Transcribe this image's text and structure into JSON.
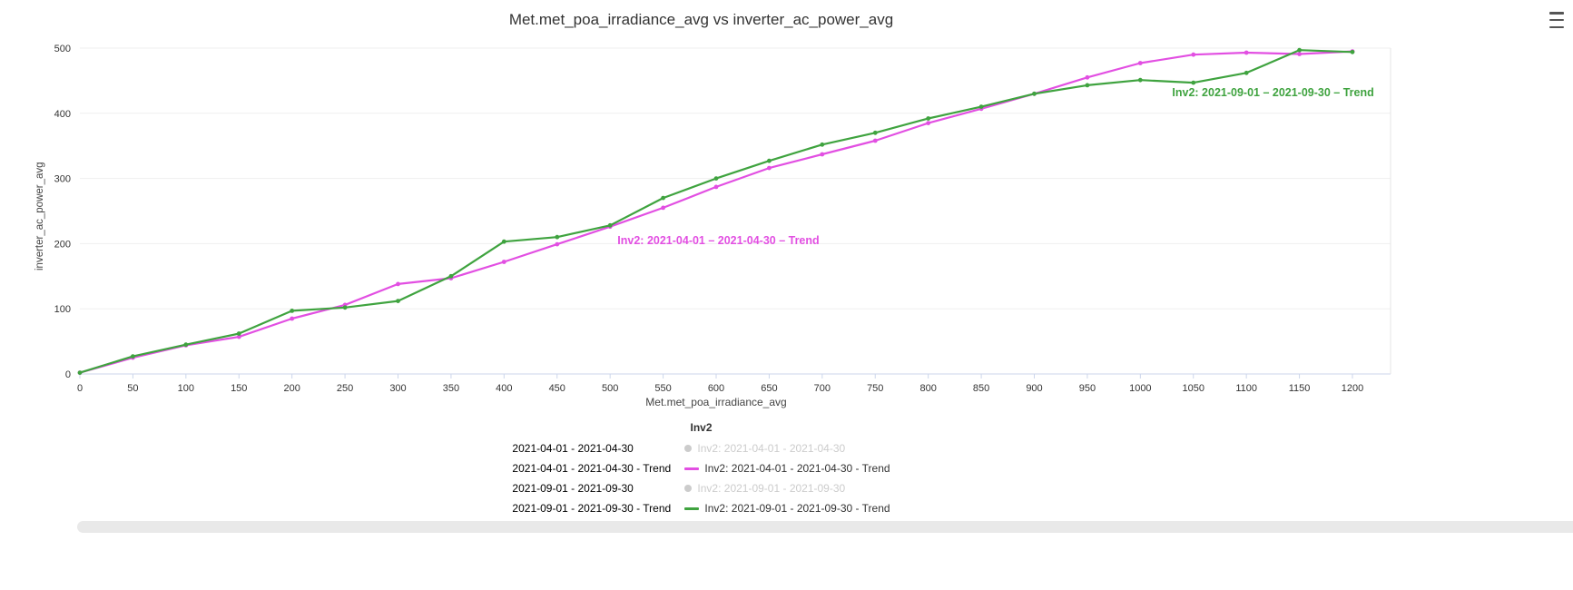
{
  "chart": {
    "title": "Met.met_poa_irradiance_avg vs inverter_ac_power_avg",
    "xlabel": "Met.met_poa_irradiance_avg",
    "ylabel": "inverter_ac_power_avg"
  },
  "icons": {
    "context_menu": "hamburger"
  },
  "colors": {
    "april_trend": "#e24fe2",
    "september_trend": "#3fa33f",
    "disabled_legend": "#cccccc",
    "axis_line": "#ccd6eb"
  },
  "legend": {
    "title": "Inv2",
    "rows": [
      {
        "left": "2021-04-01 - 2021-04-30",
        "marker": "circle",
        "color": "#cccccc",
        "label": "Inv2: 2021-04-01 - 2021-04-30",
        "disabled": true
      },
      {
        "left": "2021-04-01 - 2021-04-30 - Trend",
        "marker": "line",
        "color": "#e24fe2",
        "label": "Inv2: 2021-04-01 - 2021-04-30 - Trend",
        "disabled": false
      },
      {
        "left": "2021-09-01 - 2021-09-30",
        "marker": "circle",
        "color": "#cccccc",
        "label": "Inv2: 2021-09-01 - 2021-09-30",
        "disabled": true
      },
      {
        "left": "2021-09-01 - 2021-09-30 - Trend",
        "marker": "line",
        "color": "#3fa33f",
        "label": "Inv2: 2021-09-01 - 2021-09-30 - Trend",
        "disabled": false
      }
    ]
  },
  "chart_data": {
    "type": "line",
    "title": "Met.met_poa_irradiance_avg vs inverter_ac_power_avg",
    "xlabel": "Met.met_poa_irradiance_avg",
    "ylabel": "inverter_ac_power_avg",
    "xlim": [
      0,
      1200
    ],
    "xtick_step": 50,
    "ylim": [
      0,
      500
    ],
    "ytick_step": 100,
    "grid": true,
    "legend_position": "bottom-center",
    "x": [
      0,
      50,
      100,
      150,
      200,
      250,
      300,
      350,
      400,
      450,
      500,
      550,
      600,
      650,
      700,
      750,
      800,
      850,
      900,
      950,
      1000,
      1050,
      1100,
      1150,
      1200
    ],
    "series": [
      {
        "name": "Inv2: 2021-04-01 – 2021-04-30 – Trend",
        "color": "#e24fe2",
        "values": [
          2,
          25,
          44,
          57,
          85,
          106,
          138,
          147,
          172,
          199,
          226,
          255,
          287,
          316,
          337,
          358,
          385,
          407,
          430,
          455,
          477,
          490,
          493,
          491,
          495
        ],
        "label_at": {
          "x": 507,
          "y": 199
        }
      },
      {
        "name": "Inv2: 2021-09-01 – 2021-09-30 – Trend",
        "color": "#3fa33f",
        "values": [
          2,
          27,
          45,
          62,
          97,
          102,
          112,
          150,
          203,
          210,
          228,
          270,
          300,
          327,
          352,
          370,
          392,
          410,
          430,
          443,
          451,
          447,
          462,
          497,
          494
        ],
        "label_at": {
          "x": 1030,
          "y": 426
        }
      }
    ],
    "hidden_series": [
      "Inv2: 2021-04-01 - 2021-04-30",
      "Inv2: 2021-09-01 - 2021-09-30"
    ]
  }
}
